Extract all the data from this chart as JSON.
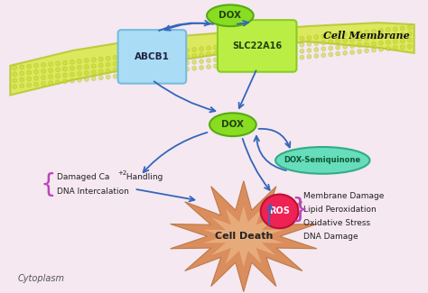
{
  "background_color": "#f5e8f0",
  "membrane_color": "#d9e84a",
  "membrane_edge_color": "#b8c832",
  "abcb1_color": "#aaddf5",
  "abcb1_label": "ABCB1",
  "abcb1_edge": "#77bbdd",
  "slc_color": "#bbee44",
  "slc_label": "SLC22A16",
  "slc_edge": "#88cc22",
  "dox_top_label": "DOX",
  "dox_color": "#88dd22",
  "dox_edge": "#55aa11",
  "dox_semi_label": "DOX-Semiquinone",
  "dox_semi_color": "#66ddbb",
  "dox_semi_edge": "#33aa88",
  "ros_label": "ROS",
  "ros_color": "#ee2255",
  "ros_edge": "#bb1133",
  "cell_membrane_label": "Cell Membrane",
  "cytoplasm_label": "Cytoplasm",
  "cell_death_label": "Cell Death",
  "left_brace_text1": "Damaged Ca",
  "left_brace_sup": "+2",
  "left_brace_text2": " Handling",
  "left_brace_text3": "DNA Intercalation",
  "right_text": [
    "Membrane Damage",
    "Lipid Peroxidation",
    "Oxidative Stress",
    "DNA Damage"
  ],
  "arrow_color": "#3366bb",
  "brace_color": "#bb44bb",
  "text_color": "#222222",
  "starburst_outer": "#d98855",
  "starburst_inner": "#f0c090"
}
